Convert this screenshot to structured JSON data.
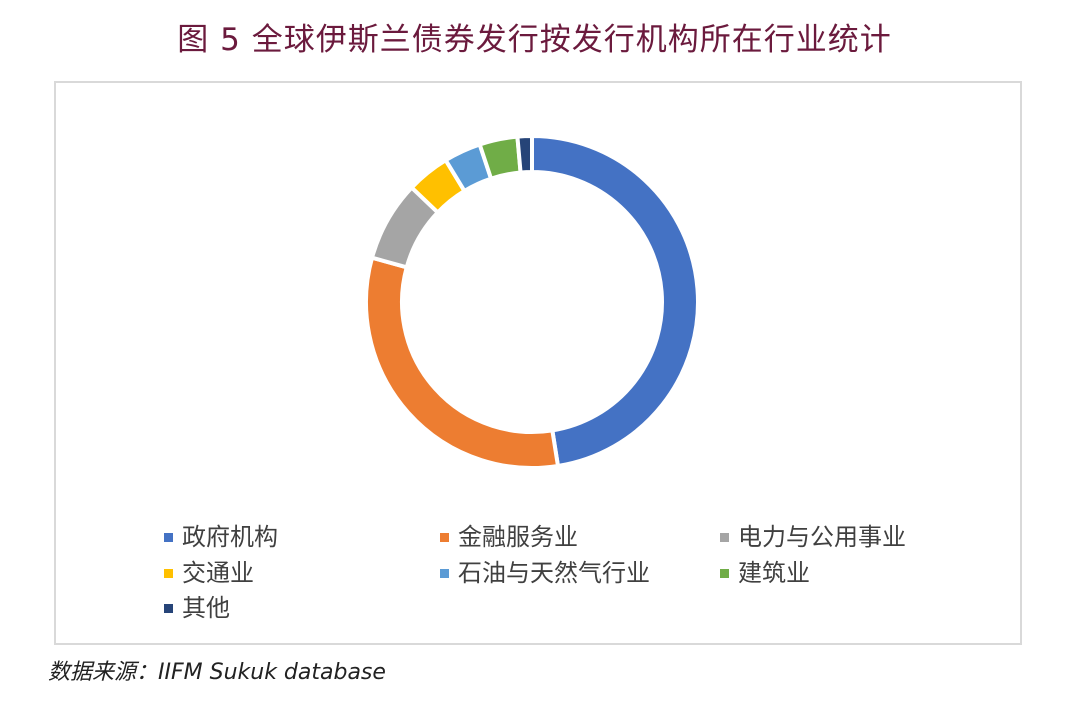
{
  "chart_data": {
    "type": "pie",
    "subtype": "donut",
    "title": "图 5  全球伊斯兰债券发行按发行机构所在行业统计",
    "categories": [
      "政府机构",
      "金融服务业",
      "电力与公用事业",
      "交通业",
      "石油与天然气行业",
      "建筑业",
      "其他"
    ],
    "values": [
      47.5,
      31.8,
      7.8,
      4.2,
      3.6,
      3.7,
      1.4
    ],
    "value_unit": "percent (estimated)",
    "colors": [
      "#4472c4",
      "#ed7d31",
      "#a5a5a5",
      "#ffc000",
      "#5b9bd5",
      "#70ad47",
      "#264478"
    ],
    "legend_position": "bottom",
    "source": "数据来源：IIFM Sukuk database"
  }
}
